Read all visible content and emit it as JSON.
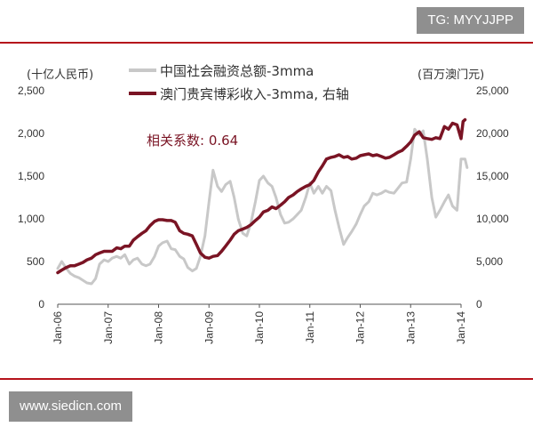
{
  "watermark_top": "TG: MYYJJPP",
  "watermark_bottom": "www.siedicn.com",
  "chart_data": {
    "type": "line",
    "left_axis_unit": "(十亿人民币)",
    "right_axis_unit": "(百万澳门元)",
    "left_ylim": [
      0,
      2500
    ],
    "right_ylim": [
      0,
      25000
    ],
    "left_ticks": [
      "0",
      "500",
      "1,000",
      "1,500",
      "2,000",
      "2,500"
    ],
    "right_ticks": [
      "0",
      "5,000",
      "10,000",
      "15,000",
      "20,000",
      "25,000"
    ],
    "x_ticks": [
      "Jan-06",
      "Jan-07",
      "Jan-08",
      "Jan-09",
      "Jan-10",
      "Jan-11",
      "Jan-12",
      "Jan-13",
      "Jan-14"
    ],
    "annotation": "相关系数: 0.64",
    "grid": false,
    "colors": {
      "financing": "#c8c8c8",
      "gaming": "#7a1424",
      "rule": "#b5121b"
    },
    "series": [
      {
        "name": "中国社会融资总额-3mma",
        "axis": "left",
        "points": [
          [
            2006.0,
            420
          ],
          [
            2006.08,
            500
          ],
          [
            2006.17,
            420
          ],
          [
            2006.25,
            360
          ],
          [
            2006.33,
            330
          ],
          [
            2006.42,
            310
          ],
          [
            2006.5,
            280
          ],
          [
            2006.58,
            250
          ],
          [
            2006.67,
            240
          ],
          [
            2006.75,
            300
          ],
          [
            2006.83,
            470
          ],
          [
            2006.92,
            520
          ],
          [
            2007.0,
            500
          ],
          [
            2007.08,
            540
          ],
          [
            2007.17,
            560
          ],
          [
            2007.25,
            540
          ],
          [
            2007.33,
            580
          ],
          [
            2007.42,
            470
          ],
          [
            2007.5,
            520
          ],
          [
            2007.58,
            540
          ],
          [
            2007.67,
            470
          ],
          [
            2007.75,
            450
          ],
          [
            2007.83,
            470
          ],
          [
            2007.92,
            560
          ],
          [
            2008.0,
            680
          ],
          [
            2008.08,
            720
          ],
          [
            2008.17,
            740
          ],
          [
            2008.25,
            650
          ],
          [
            2008.33,
            640
          ],
          [
            2008.42,
            560
          ],
          [
            2008.5,
            530
          ],
          [
            2008.58,
            430
          ],
          [
            2008.67,
            390
          ],
          [
            2008.75,
            420
          ],
          [
            2008.83,
            560
          ],
          [
            2008.92,
            800
          ],
          [
            2009.0,
            1200
          ],
          [
            2009.08,
            1570
          ],
          [
            2009.17,
            1380
          ],
          [
            2009.25,
            1320
          ],
          [
            2009.33,
            1400
          ],
          [
            2009.42,
            1440
          ],
          [
            2009.5,
            1250
          ],
          [
            2009.58,
            1000
          ],
          [
            2009.67,
            830
          ],
          [
            2009.75,
            800
          ],
          [
            2009.83,
            950
          ],
          [
            2009.92,
            1200
          ],
          [
            2010.0,
            1450
          ],
          [
            2010.08,
            1500
          ],
          [
            2010.17,
            1420
          ],
          [
            2010.25,
            1380
          ],
          [
            2010.33,
            1250
          ],
          [
            2010.42,
            1050
          ],
          [
            2010.5,
            950
          ],
          [
            2010.58,
            960
          ],
          [
            2010.67,
            1000
          ],
          [
            2010.75,
            1050
          ],
          [
            2010.83,
            1100
          ],
          [
            2010.92,
            1250
          ],
          [
            2011.0,
            1420
          ],
          [
            2011.08,
            1300
          ],
          [
            2011.17,
            1380
          ],
          [
            2011.25,
            1300
          ],
          [
            2011.33,
            1380
          ],
          [
            2011.42,
            1330
          ],
          [
            2011.5,
            1100
          ],
          [
            2011.58,
            900
          ],
          [
            2011.67,
            700
          ],
          [
            2011.75,
            780
          ],
          [
            2011.83,
            850
          ],
          [
            2011.92,
            940
          ],
          [
            2012.0,
            1050
          ],
          [
            2012.08,
            1150
          ],
          [
            2012.17,
            1200
          ],
          [
            2012.25,
            1300
          ],
          [
            2012.33,
            1280
          ],
          [
            2012.42,
            1300
          ],
          [
            2012.5,
            1330
          ],
          [
            2012.58,
            1310
          ],
          [
            2012.67,
            1300
          ],
          [
            2012.75,
            1360
          ],
          [
            2012.83,
            1420
          ],
          [
            2012.92,
            1430
          ],
          [
            2013.0,
            1700
          ],
          [
            2013.08,
            2050
          ],
          [
            2013.17,
            1980
          ],
          [
            2013.25,
            2030
          ],
          [
            2013.33,
            1700
          ],
          [
            2013.42,
            1250
          ],
          [
            2013.5,
            1020
          ],
          [
            2013.58,
            1100
          ],
          [
            2013.67,
            1200
          ],
          [
            2013.75,
            1280
          ],
          [
            2013.83,
            1150
          ],
          [
            2013.92,
            1100
          ],
          [
            2014.0,
            1700
          ],
          [
            2014.08,
            1700
          ],
          [
            2014.12,
            1600
          ]
        ]
      },
      {
        "name": "澳门贵宾博彩收入-3mma, 右轴",
        "axis": "right",
        "points": [
          [
            2006.0,
            3700
          ],
          [
            2006.08,
            4000
          ],
          [
            2006.17,
            4300
          ],
          [
            2006.25,
            4500
          ],
          [
            2006.33,
            4500
          ],
          [
            2006.42,
            4700
          ],
          [
            2006.5,
            4900
          ],
          [
            2006.58,
            5200
          ],
          [
            2006.67,
            5400
          ],
          [
            2006.75,
            5800
          ],
          [
            2006.83,
            6000
          ],
          [
            2006.92,
            6200
          ],
          [
            2007.0,
            6200
          ],
          [
            2007.08,
            6200
          ],
          [
            2007.17,
            6600
          ],
          [
            2007.25,
            6500
          ],
          [
            2007.33,
            6800
          ],
          [
            2007.42,
            6800
          ],
          [
            2007.5,
            7500
          ],
          [
            2007.58,
            7900
          ],
          [
            2007.67,
            8300
          ],
          [
            2007.75,
            8600
          ],
          [
            2007.83,
            9200
          ],
          [
            2007.92,
            9700
          ],
          [
            2008.0,
            9900
          ],
          [
            2008.08,
            9900
          ],
          [
            2008.17,
            9800
          ],
          [
            2008.25,
            9800
          ],
          [
            2008.33,
            9600
          ],
          [
            2008.42,
            8600
          ],
          [
            2008.5,
            8300
          ],
          [
            2008.58,
            8200
          ],
          [
            2008.67,
            8000
          ],
          [
            2008.75,
            7000
          ],
          [
            2008.83,
            6000
          ],
          [
            2008.92,
            5500
          ],
          [
            2009.0,
            5400
          ],
          [
            2009.08,
            5600
          ],
          [
            2009.17,
            5700
          ],
          [
            2009.25,
            6200
          ],
          [
            2009.33,
            6800
          ],
          [
            2009.42,
            7500
          ],
          [
            2009.5,
            8200
          ],
          [
            2009.58,
            8600
          ],
          [
            2009.67,
            8800
          ],
          [
            2009.75,
            9000
          ],
          [
            2009.83,
            9300
          ],
          [
            2009.92,
            9800
          ],
          [
            2010.0,
            10200
          ],
          [
            2010.08,
            10800
          ],
          [
            2010.17,
            11000
          ],
          [
            2010.25,
            11400
          ],
          [
            2010.33,
            11200
          ],
          [
            2010.42,
            11600
          ],
          [
            2010.5,
            12000
          ],
          [
            2010.58,
            12500
          ],
          [
            2010.67,
            12800
          ],
          [
            2010.75,
            13200
          ],
          [
            2010.83,
            13500
          ],
          [
            2010.92,
            13800
          ],
          [
            2011.0,
            14000
          ],
          [
            2011.08,
            14500
          ],
          [
            2011.17,
            15500
          ],
          [
            2011.25,
            16200
          ],
          [
            2011.33,
            17000
          ],
          [
            2011.42,
            17200
          ],
          [
            2011.5,
            17300
          ],
          [
            2011.58,
            17500
          ],
          [
            2011.67,
            17200
          ],
          [
            2011.75,
            17300
          ],
          [
            2011.83,
            17000
          ],
          [
            2011.92,
            17100
          ],
          [
            2012.0,
            17400
          ],
          [
            2012.08,
            17500
          ],
          [
            2012.17,
            17600
          ],
          [
            2012.25,
            17400
          ],
          [
            2012.33,
            17500
          ],
          [
            2012.42,
            17300
          ],
          [
            2012.5,
            17100
          ],
          [
            2012.58,
            17200
          ],
          [
            2012.67,
            17500
          ],
          [
            2012.75,
            17800
          ],
          [
            2012.83,
            18000
          ],
          [
            2012.92,
            18500
          ],
          [
            2013.0,
            19000
          ],
          [
            2013.08,
            19800
          ],
          [
            2013.17,
            20200
          ],
          [
            2013.25,
            19500
          ],
          [
            2013.33,
            19400
          ],
          [
            2013.42,
            19300
          ],
          [
            2013.5,
            19500
          ],
          [
            2013.58,
            19400
          ],
          [
            2013.67,
            20800
          ],
          [
            2013.75,
            20500
          ],
          [
            2013.83,
            21200
          ],
          [
            2013.92,
            21000
          ],
          [
            2014.0,
            19400
          ],
          [
            2014.04,
            21400
          ],
          [
            2014.08,
            21600
          ]
        ]
      }
    ]
  }
}
